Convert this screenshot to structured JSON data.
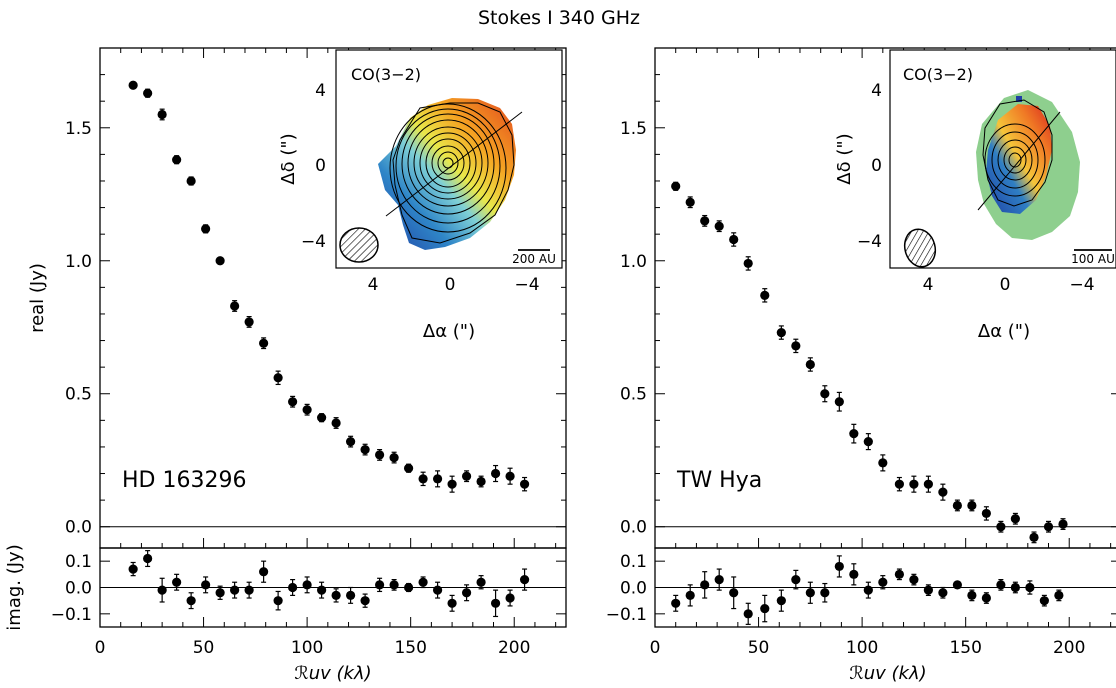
{
  "figure_title": "Stokes I 340 GHz",
  "chart_data": [
    {
      "type": "scatter",
      "panel": "HD 163296",
      "xlabel": "ℛuv (kλ)",
      "ylabel_top": "real (Jy)",
      "ylabel_bottom": "imag. (Jy)",
      "xlim": [
        0,
        225
      ],
      "ylim_real": [
        -0.08,
        1.8
      ],
      "ylim_imag": [
        -0.15,
        0.15
      ],
      "x_ticks": [
        "0",
        "50",
        "100",
        "150",
        "200"
      ],
      "y_ticks_real": [
        "0.0",
        "0.5",
        "1.0",
        "1.5"
      ],
      "y_ticks_imag": [
        "0.1",
        "0.0",
        "−0.1"
      ],
      "real": [
        {
          "x": 16,
          "y": 1.66,
          "err": 0.012
        },
        {
          "x": 23,
          "y": 1.63,
          "err": 0.015
        },
        {
          "x": 30,
          "y": 1.55,
          "err": 0.02
        },
        {
          "x": 37,
          "y": 1.38,
          "err": 0.015
        },
        {
          "x": 44,
          "y": 1.3,
          "err": 0.015
        },
        {
          "x": 51,
          "y": 1.12,
          "err": 0.015
        },
        {
          "x": 58,
          "y": 1.0,
          "err": 0.012
        },
        {
          "x": 65,
          "y": 0.83,
          "err": 0.02
        },
        {
          "x": 72,
          "y": 0.77,
          "err": 0.02
        },
        {
          "x": 79,
          "y": 0.69,
          "err": 0.02
        },
        {
          "x": 86,
          "y": 0.56,
          "err": 0.025
        },
        {
          "x": 93,
          "y": 0.47,
          "err": 0.02
        },
        {
          "x": 100,
          "y": 0.44,
          "err": 0.02
        },
        {
          "x": 107,
          "y": 0.41,
          "err": 0.015
        },
        {
          "x": 114,
          "y": 0.39,
          "err": 0.02
        },
        {
          "x": 121,
          "y": 0.32,
          "err": 0.02
        },
        {
          "x": 128,
          "y": 0.29,
          "err": 0.02
        },
        {
          "x": 135,
          "y": 0.27,
          "err": 0.02
        },
        {
          "x": 142,
          "y": 0.26,
          "err": 0.02
        },
        {
          "x": 149,
          "y": 0.22,
          "err": 0.015
        },
        {
          "x": 156,
          "y": 0.18,
          "err": 0.025
        },
        {
          "x": 163,
          "y": 0.18,
          "err": 0.03
        },
        {
          "x": 170,
          "y": 0.16,
          "err": 0.03
        },
        {
          "x": 177,
          "y": 0.19,
          "err": 0.02
        },
        {
          "x": 184,
          "y": 0.17,
          "err": 0.02
        },
        {
          "x": 191,
          "y": 0.2,
          "err": 0.03
        },
        {
          "x": 198,
          "y": 0.19,
          "err": 0.03
        },
        {
          "x": 205,
          "y": 0.16,
          "err": 0.025
        }
      ],
      "imag": [
        {
          "x": 16,
          "y": 0.07,
          "err": 0.025
        },
        {
          "x": 23,
          "y": 0.11,
          "err": 0.03
        },
        {
          "x": 30,
          "y": -0.01,
          "err": 0.045
        },
        {
          "x": 37,
          "y": 0.02,
          "err": 0.03
        },
        {
          "x": 44,
          "y": -0.05,
          "err": 0.03
        },
        {
          "x": 51,
          "y": 0.01,
          "err": 0.03
        },
        {
          "x": 58,
          "y": -0.02,
          "err": 0.025
        },
        {
          "x": 65,
          "y": -0.01,
          "err": 0.03
        },
        {
          "x": 72,
          "y": -0.01,
          "err": 0.03
        },
        {
          "x": 79,
          "y": 0.06,
          "err": 0.04
        },
        {
          "x": 86,
          "y": -0.05,
          "err": 0.035
        },
        {
          "x": 93,
          "y": 0.0,
          "err": 0.03
        },
        {
          "x": 100,
          "y": 0.01,
          "err": 0.03
        },
        {
          "x": 107,
          "y": -0.01,
          "err": 0.03
        },
        {
          "x": 114,
          "y": -0.03,
          "err": 0.025
        },
        {
          "x": 121,
          "y": -0.03,
          "err": 0.03
        },
        {
          "x": 128,
          "y": -0.05,
          "err": 0.025
        },
        {
          "x": 135,
          "y": 0.01,
          "err": 0.025
        },
        {
          "x": 142,
          "y": 0.01,
          "err": 0.02
        },
        {
          "x": 149,
          "y": 0.0,
          "err": 0.015
        },
        {
          "x": 156,
          "y": 0.02,
          "err": 0.02
        },
        {
          "x": 163,
          "y": -0.01,
          "err": 0.03
        },
        {
          "x": 170,
          "y": -0.06,
          "err": 0.03
        },
        {
          "x": 177,
          "y": -0.02,
          "err": 0.03
        },
        {
          "x": 184,
          "y": 0.02,
          "err": 0.025
        },
        {
          "x": 191,
          "y": -0.06,
          "err": 0.05
        },
        {
          "x": 198,
          "y": -0.04,
          "err": 0.03
        },
        {
          "x": 205,
          "y": 0.03,
          "err": 0.04
        }
      ],
      "inset": {
        "label": "CO(3−2)",
        "scale_bar": "200 AU",
        "x_label": "Δα (\")",
        "y_label": "Δδ (\")",
        "x_ticks": [
          "4",
          "0",
          "−4"
        ],
        "y_ticks": [
          "4",
          "0",
          "−4"
        ]
      }
    },
    {
      "type": "scatter",
      "panel": "TW Hya",
      "xlabel": "ℛuv (kλ)",
      "xlim": [
        0,
        225
      ],
      "ylim_real": [
        -0.08,
        1.8
      ],
      "ylim_imag": [
        -0.15,
        0.15
      ],
      "x_ticks": [
        "0",
        "50",
        "100",
        "150",
        "200"
      ],
      "y_ticks_real": [
        "0.0",
        "0.5",
        "1.0",
        "1.5"
      ],
      "y_ticks_imag": [
        "0.1",
        "0.0",
        "−0.1"
      ],
      "real": [
        {
          "x": 10,
          "y": 1.28,
          "err": 0.015
        },
        {
          "x": 17,
          "y": 1.22,
          "err": 0.02
        },
        {
          "x": 24,
          "y": 1.15,
          "err": 0.02
        },
        {
          "x": 31,
          "y": 1.13,
          "err": 0.02
        },
        {
          "x": 38,
          "y": 1.08,
          "err": 0.025
        },
        {
          "x": 45,
          "y": 0.99,
          "err": 0.025
        },
        {
          "x": 53,
          "y": 0.87,
          "err": 0.025
        },
        {
          "x": 61,
          "y": 0.73,
          "err": 0.025
        },
        {
          "x": 68,
          "y": 0.68,
          "err": 0.025
        },
        {
          "x": 75,
          "y": 0.61,
          "err": 0.025
        },
        {
          "x": 82,
          "y": 0.5,
          "err": 0.03
        },
        {
          "x": 89,
          "y": 0.47,
          "err": 0.035
        },
        {
          "x": 96,
          "y": 0.35,
          "err": 0.035
        },
        {
          "x": 103,
          "y": 0.32,
          "err": 0.03
        },
        {
          "x": 110,
          "y": 0.24,
          "err": 0.03
        },
        {
          "x": 118,
          "y": 0.16,
          "err": 0.025
        },
        {
          "x": 125,
          "y": 0.16,
          "err": 0.03
        },
        {
          "x": 132,
          "y": 0.16,
          "err": 0.03
        },
        {
          "x": 139,
          "y": 0.13,
          "err": 0.03
        },
        {
          "x": 146,
          "y": 0.08,
          "err": 0.02
        },
        {
          "x": 153,
          "y": 0.08,
          "err": 0.02
        },
        {
          "x": 160,
          "y": 0.05,
          "err": 0.025
        },
        {
          "x": 167,
          "y": 0.0,
          "err": 0.02
        },
        {
          "x": 174,
          "y": 0.03,
          "err": 0.02
        },
        {
          "x": 183,
          "y": -0.04,
          "err": 0.02
        },
        {
          "x": 190,
          "y": 0.0,
          "err": 0.02
        },
        {
          "x": 197,
          "y": 0.01,
          "err": 0.02
        }
      ],
      "imag": [
        {
          "x": 10,
          "y": -0.06,
          "err": 0.03
        },
        {
          "x": 17,
          "y": -0.03,
          "err": 0.04
        },
        {
          "x": 24,
          "y": 0.01,
          "err": 0.05
        },
        {
          "x": 31,
          "y": 0.03,
          "err": 0.04
        },
        {
          "x": 38,
          "y": -0.02,
          "err": 0.06
        },
        {
          "x": 45,
          "y": -0.1,
          "err": 0.04
        },
        {
          "x": 53,
          "y": -0.08,
          "err": 0.05
        },
        {
          "x": 61,
          "y": -0.05,
          "err": 0.04
        },
        {
          "x": 68,
          "y": 0.03,
          "err": 0.035
        },
        {
          "x": 75,
          "y": -0.02,
          "err": 0.04
        },
        {
          "x": 82,
          "y": -0.02,
          "err": 0.035
        },
        {
          "x": 89,
          "y": 0.08,
          "err": 0.04
        },
        {
          "x": 96,
          "y": 0.05,
          "err": 0.04
        },
        {
          "x": 103,
          "y": -0.01,
          "err": 0.03
        },
        {
          "x": 110,
          "y": 0.02,
          "err": 0.025
        },
        {
          "x": 118,
          "y": 0.05,
          "err": 0.02
        },
        {
          "x": 125,
          "y": 0.03,
          "err": 0.02
        },
        {
          "x": 132,
          "y": -0.01,
          "err": 0.02
        },
        {
          "x": 139,
          "y": -0.02,
          "err": 0.02
        },
        {
          "x": 146,
          "y": 0.01,
          "err": 0.01
        },
        {
          "x": 153,
          "y": -0.03,
          "err": 0.02
        },
        {
          "x": 160,
          "y": -0.04,
          "err": 0.02
        },
        {
          "x": 167,
          "y": 0.01,
          "err": 0.02
        },
        {
          "x": 174,
          "y": 0.0,
          "err": 0.02
        },
        {
          "x": 181,
          "y": 0.0,
          "err": 0.025
        },
        {
          "x": 188,
          "y": -0.05,
          "err": 0.02
        },
        {
          "x": 195,
          "y": -0.03,
          "err": 0.02
        }
      ],
      "inset": {
        "label": "CO(3−2)",
        "scale_bar": "100 AU",
        "x_label": "Δα (\")",
        "y_label": "Δδ (\")",
        "x_ticks": [
          "4",
          "0",
          "−4"
        ],
        "y_ticks": [
          "4",
          "0",
          "−4"
        ]
      }
    }
  ]
}
